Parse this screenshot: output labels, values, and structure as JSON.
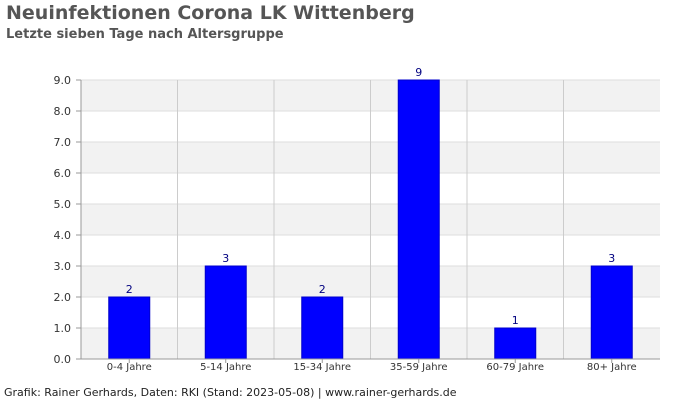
{
  "header": {
    "title": "Neuinfektionen Corona LK Wittenberg",
    "subtitle": "Letzte sieben Tage nach Altersgruppe"
  },
  "footer": {
    "credit": "Grafik: Rainer Gerhards, Daten: RKI (Stand: 2023-05-08) | www.rainer-gerhards.de"
  },
  "colors": {
    "bar": "#0000ff",
    "bar_label": "#000080",
    "band": "#f2f2f2",
    "grid": "#cccccc"
  },
  "chart_data": {
    "type": "bar",
    "title": "Neuinfektionen Corona LK Wittenberg",
    "subtitle": "Letzte sieben Tage nach Altersgruppe",
    "categories": [
      "0-4 Jahre",
      "5-14 Jahre",
      "15-34 Jahre",
      "35-59 Jahre",
      "60-79 Jahre",
      "80+ Jahre"
    ],
    "values": [
      2,
      3,
      2,
      9,
      1,
      3
    ],
    "data_labels": [
      "2",
      "3",
      "2",
      "9",
      "1",
      "3"
    ],
    "ylim": [
      0,
      9
    ],
    "yticks": [
      "0.0",
      "1.0",
      "2.0",
      "3.0",
      "4.0",
      "5.0",
      "6.0",
      "7.0",
      "8.0",
      "9.0"
    ],
    "grid": true,
    "legend": "none"
  }
}
